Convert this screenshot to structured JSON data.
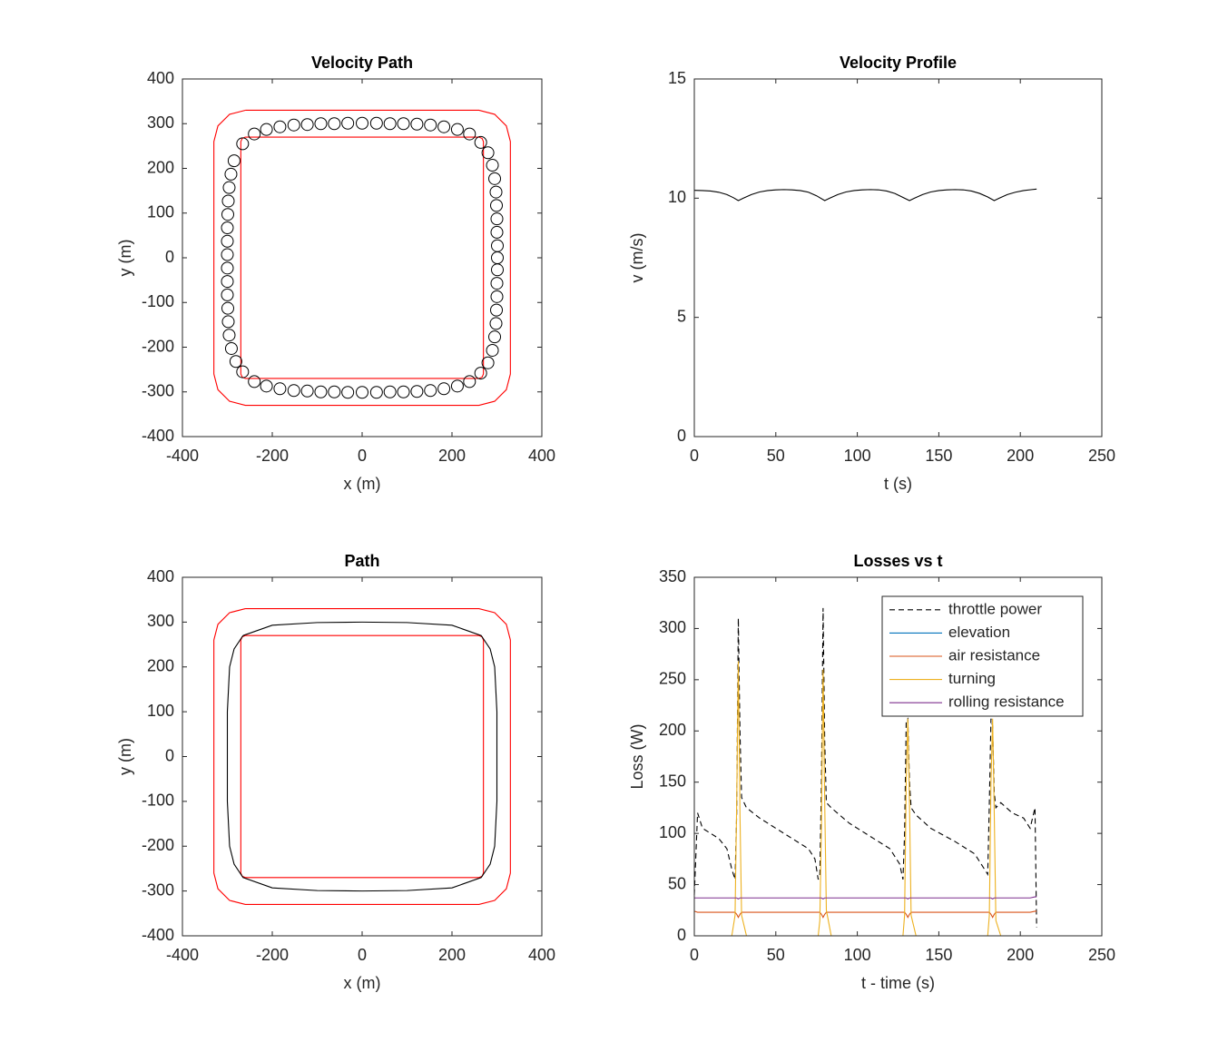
{
  "chart_data": [
    {
      "type": "line",
      "title": "Velocity Path",
      "xlabel": "x (m)",
      "ylabel": "y (m)",
      "xlim": [
        -400,
        400
      ],
      "ylim": [
        -400,
        400
      ],
      "xticks": [
        -400,
        -200,
        0,
        200,
        400
      ],
      "yticks": [
        -400,
        -300,
        -200,
        -100,
        0,
        100,
        200,
        300,
        400
      ],
      "series": [
        {
          "color": "#ff0000",
          "x": [
            -260,
            260,
            295,
            321,
            330,
            330,
            321,
            295,
            260,
            -260,
            -295,
            -321,
            -330,
            -330,
            -321,
            -295,
            -260
          ],
          "values": [
            330,
            330,
            321,
            295,
            260,
            -260,
            -295,
            -321,
            -330,
            -330,
            -321,
            -295,
            -260,
            260,
            295,
            321,
            330
          ]
        },
        {
          "color": "#ff0000",
          "x": [
            -260,
            260,
            267,
            270,
            270,
            267,
            260,
            -260,
            -267,
            -270,
            -270,
            -267,
            -260
          ],
          "values": [
            270,
            270,
            267,
            260,
            -260,
            -267,
            -270,
            -270,
            -267,
            -260,
            260,
            267,
            270
          ]
        },
        {
          "color": "#000000",
          "marker": "circle",
          "x": [
            -266,
            -240,
            -213,
            -183,
            -152,
            -122,
            -92,
            -62,
            -32,
            0,
            32,
            62,
            92,
            122,
            152,
            182,
            212,
            239,
            264,
            280,
            290,
            295,
            298,
            299,
            300,
            300,
            301,
            301,
            301,
            300,
            300,
            299,
            298,
            295,
            290,
            280,
            264,
            239,
            212,
            182,
            152,
            122,
            92,
            62,
            32,
            0,
            -32,
            -62,
            -92,
            -122,
            -152,
            -183,
            -213,
            -240,
            -266,
            -281,
            -291,
            -296,
            -298,
            -299,
            -300,
            -300,
            -300,
            -300,
            -300,
            -300,
            -299,
            -298,
            -296,
            -292,
            -285
          ],
          "values": [
            255,
            277,
            287,
            293,
            297,
            298,
            300,
            300,
            301,
            301,
            301,
            300,
            300,
            299,
            297,
            293,
            287,
            277,
            258,
            235,
            207,
            177,
            147,
            117,
            87,
            57,
            27,
            0,
            -27,
            -57,
            -87,
            -117,
            -147,
            -177,
            -207,
            -235,
            -258,
            -277,
            -287,
            -293,
            -297,
            -299,
            -300,
            -300,
            -301,
            -301,
            -301,
            -300,
            -300,
            -298,
            -297,
            -293,
            -287,
            -277,
            -255,
            -232,
            -203,
            -173,
            -143,
            -113,
            -83,
            -53,
            -23,
            7,
            37,
            67,
            97,
            127,
            157,
            187,
            217
          ]
        }
      ]
    },
    {
      "type": "line",
      "title": "Velocity Profile",
      "xlabel": "t (s)",
      "ylabel": "v (m/s)",
      "xlim": [
        0,
        250
      ],
      "ylim": [
        0,
        15
      ],
      "xticks": [
        0,
        50,
        100,
        150,
        200,
        250
      ],
      "yticks": [
        0,
        5,
        10,
        15
      ],
      "series": [
        {
          "color": "#000000",
          "x": [
            0,
            5,
            10,
            15,
            20,
            24,
            27,
            30,
            35,
            40,
            45,
            50,
            55,
            60,
            65,
            70,
            75,
            80,
            83,
            88,
            93,
            98,
            103,
            108,
            113,
            118,
            123,
            128,
            132,
            135,
            140,
            145,
            150,
            155,
            160,
            165,
            170,
            175,
            180,
            184,
            187,
            192,
            197,
            202,
            207,
            210
          ],
          "values": [
            10.33,
            10.32,
            10.3,
            10.25,
            10.15,
            10.02,
            9.9,
            10.0,
            10.15,
            10.26,
            10.32,
            10.35,
            10.36,
            10.35,
            10.32,
            10.25,
            10.1,
            9.9,
            10.0,
            10.15,
            10.26,
            10.32,
            10.35,
            10.36,
            10.35,
            10.3,
            10.2,
            10.03,
            9.9,
            10.0,
            10.15,
            10.26,
            10.32,
            10.35,
            10.36,
            10.35,
            10.3,
            10.2,
            10.05,
            9.9,
            10.0,
            10.15,
            10.25,
            10.32,
            10.36,
            10.38
          ]
        }
      ]
    },
    {
      "type": "line",
      "title": "Path",
      "xlabel": "x (m)",
      "ylabel": "y (m)",
      "xlim": [
        -400,
        400
      ],
      "ylim": [
        -400,
        400
      ],
      "xticks": [
        -400,
        -200,
        0,
        200,
        400
      ],
      "yticks": [
        -400,
        -300,
        -200,
        -100,
        0,
        100,
        200,
        300,
        400
      ],
      "series": [
        {
          "color": "#ff0000",
          "x": [
            -260,
            260,
            295,
            321,
            330,
            330,
            321,
            295,
            260,
            -260,
            -295,
            -321,
            -330,
            -330,
            -321,
            -295,
            -260
          ],
          "values": [
            330,
            330,
            321,
            295,
            260,
            -260,
            -295,
            -321,
            -330,
            -330,
            -321,
            -295,
            -260,
            260,
            295,
            321,
            330
          ]
        },
        {
          "color": "#ff0000",
          "x": [
            -260,
            260,
            267,
            270,
            270,
            267,
            260,
            -260,
            -267,
            -270,
            -270,
            -267,
            -260
          ],
          "values": [
            270,
            270,
            267,
            260,
            -260,
            -267,
            -270,
            -270,
            -267,
            -260,
            260,
            267,
            270
          ]
        },
        {
          "color": "#000000",
          "x": [
            -265,
            -200,
            -100,
            0,
            100,
            200,
            265,
            285,
            295,
            300,
            300,
            295,
            285,
            265,
            200,
            100,
            0,
            -100,
            -200,
            -265,
            -285,
            -295,
            -300,
            -300,
            -295,
            -285,
            -265
          ],
          "values": [
            270,
            293,
            299,
            300,
            299,
            293,
            270,
            240,
            200,
            100,
            -100,
            -200,
            -240,
            -270,
            -293,
            -299,
            -300,
            -299,
            -293,
            -270,
            -240,
            -200,
            -100,
            100,
            200,
            240,
            270
          ]
        }
      ]
    },
    {
      "type": "line",
      "title": "Losses vs t",
      "xlabel": "t - time (s)",
      "ylabel": "Loss (W)",
      "xlim": [
        0,
        250
      ],
      "ylim": [
        0,
        350
      ],
      "xticks": [
        0,
        50,
        100,
        150,
        200,
        250
      ],
      "yticks": [
        0,
        50,
        100,
        150,
        200,
        250,
        300,
        350
      ],
      "legend": "northeast",
      "x": [
        0,
        2,
        5,
        10,
        15,
        20,
        23,
        25,
        26,
        27,
        28,
        29,
        32,
        40,
        50,
        60,
        70,
        74,
        76,
        77,
        78,
        79,
        80,
        81,
        84,
        95,
        110,
        120,
        126,
        128,
        129,
        130,
        131,
        132,
        133,
        136,
        145,
        160,
        172,
        178,
        180,
        181,
        182,
        183,
        184,
        185,
        188,
        195,
        202,
        206,
        209,
        210
      ],
      "series": [
        {
          "name": "throttle power",
          "color": "#000000",
          "line_style": "dashed",
          "values": [
            40,
            120,
            105,
            100,
            95,
            85,
            65,
            55,
            120,
            310,
            200,
            135,
            125,
            115,
            105,
            95,
            85,
            75,
            55,
            60,
            150,
            320,
            190,
            130,
            125,
            110,
            95,
            85,
            70,
            55,
            100,
            210,
            212,
            150,
            125,
            118,
            105,
            92,
            80,
            65,
            60,
            130,
            212,
            205,
            140,
            125,
            130,
            120,
            115,
            105,
            125,
            8
          ]
        },
        {
          "name": "elevation",
          "color": "#0072bd",
          "values": [
            0,
            0,
            0,
            0,
            0,
            0,
            0,
            0,
            0,
            0,
            0,
            0,
            0,
            0,
            0,
            0,
            0,
            0,
            0,
            0,
            0,
            0,
            0,
            0,
            0,
            0,
            0,
            0,
            0,
            0,
            0,
            0,
            0,
            0,
            0,
            0,
            0,
            0,
            0,
            0,
            0,
            0,
            0,
            0,
            0,
            0,
            0,
            0,
            0,
            0,
            0,
            0
          ]
        },
        {
          "name": "air resistance",
          "color": "#d95319",
          "values": [
            24,
            23,
            23,
            23,
            23,
            23,
            23,
            23,
            21,
            18,
            21,
            23,
            23,
            23,
            23,
            23,
            23,
            23,
            23,
            23,
            21,
            18,
            21,
            23,
            23,
            23,
            23,
            23,
            23,
            23,
            23,
            21,
            18,
            21,
            23,
            23,
            23,
            23,
            23,
            23,
            23,
            23,
            21,
            18,
            21,
            23,
            23,
            23,
            23,
            23,
            24,
            24
          ]
        },
        {
          "name": "turning",
          "color": "#edb120",
          "values": [
            0,
            0,
            0,
            0,
            0,
            0,
            0,
            20,
            130,
            268,
            120,
            20,
            0,
            0,
            0,
            0,
            0,
            0,
            0,
            15,
            110,
            260,
            130,
            25,
            0,
            0,
            0,
            0,
            0,
            0,
            20,
            150,
            212,
            130,
            20,
            0,
            0,
            0,
            0,
            0,
            0,
            20,
            150,
            212,
            120,
            15,
            0,
            0,
            0,
            0,
            0,
            0
          ]
        },
        {
          "name": "rolling resistance",
          "color": "#7e2f8e",
          "values": [
            37,
            37,
            37,
            37,
            37,
            37,
            37,
            37,
            37,
            36,
            37,
            37,
            37,
            37,
            37,
            37,
            37,
            37,
            37,
            37,
            37,
            36,
            37,
            37,
            37,
            37,
            37,
            37,
            37,
            37,
            37,
            37,
            36,
            37,
            37,
            37,
            37,
            37,
            37,
            37,
            37,
            37,
            37,
            36,
            37,
            37,
            37,
            37,
            37,
            37,
            38,
            38
          ]
        }
      ]
    }
  ]
}
